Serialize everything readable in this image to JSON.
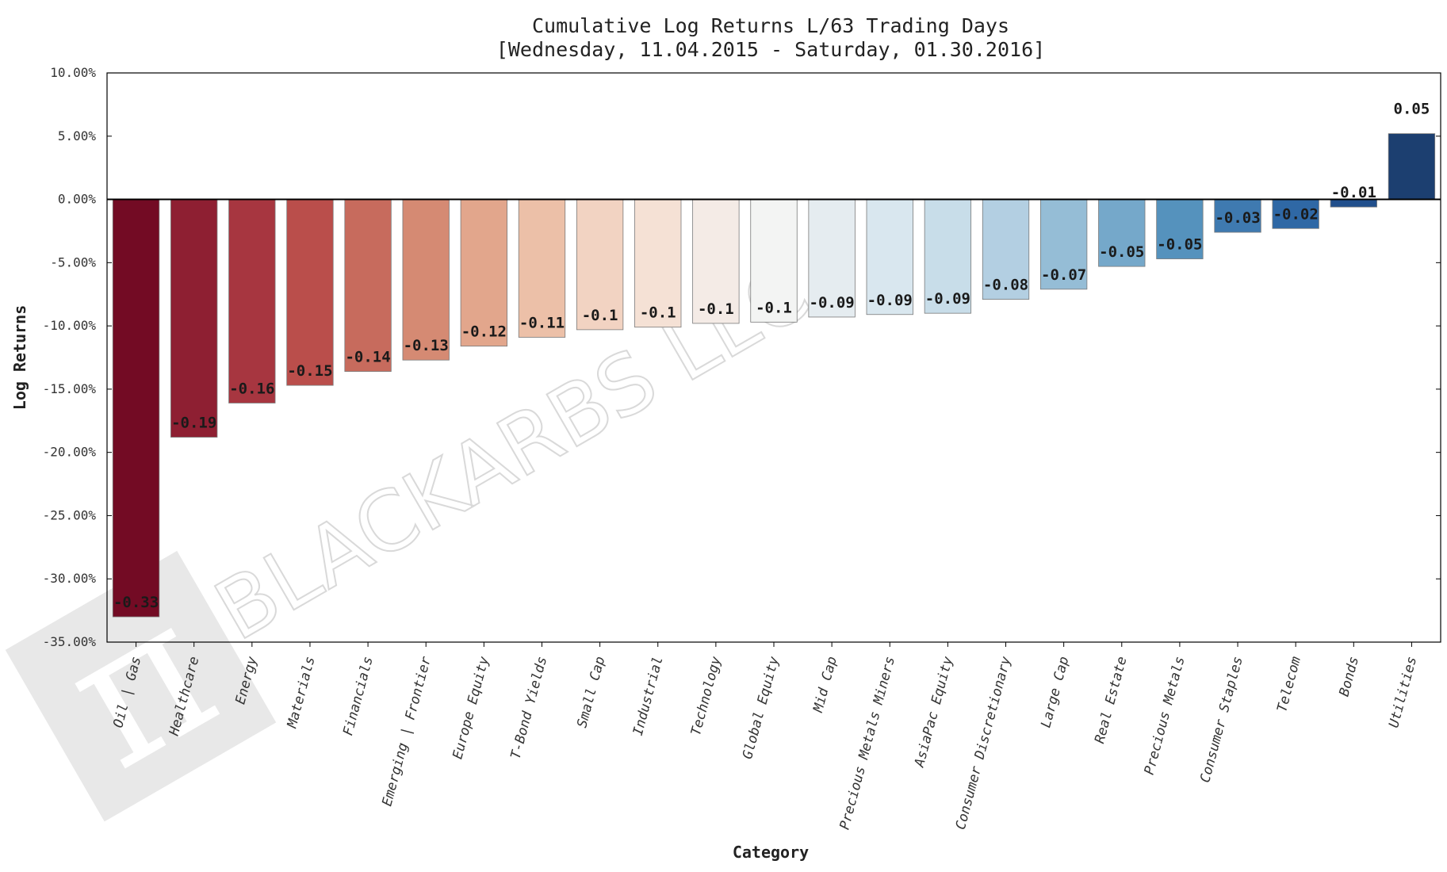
{
  "chart_data": {
    "type": "bar",
    "title": "Cumulative Log Returns L/63 Trading Days",
    "subtitle": "[Wednesday, 11.04.2015 - Saturday, 01.30.2016]",
    "xlabel": "Category",
    "ylabel": "Log Returns",
    "ylim": [
      -0.35,
      0.1
    ],
    "yticks": [
      0.1,
      0.05,
      0.0,
      -0.05,
      -0.1,
      -0.15,
      -0.2,
      -0.25,
      -0.3,
      -0.35
    ],
    "ytick_labels": [
      "10.00%",
      "5.00%",
      "0.00%",
      "-5.00%",
      "-10.00%",
      "-15.00%",
      "-20.00%",
      "-25.00%",
      "-30.00%",
      "-35.00%"
    ],
    "categories": [
      "Oil | Gas",
      "Healthcare",
      "Energy",
      "Materials",
      "Financials",
      "Emerging | Frontier",
      "Europe Equity",
      "T-Bond Yields",
      "Small Cap",
      "Industrial",
      "Technology",
      "Global Equity",
      "Mid Cap",
      "Precious Metals Miners",
      "AsiaPac Equity",
      "Consumer Discretionary",
      "Large Cap",
      "Real Estate",
      "Precious Metals",
      "Consumer Staples",
      "Telecom",
      "Bonds",
      "Utilities"
    ],
    "values": [
      -0.33,
      -0.188,
      -0.161,
      -0.147,
      -0.136,
      -0.127,
      -0.116,
      -0.109,
      -0.103,
      -0.101,
      -0.098,
      -0.097,
      -0.093,
      -0.091,
      -0.09,
      -0.079,
      -0.071,
      -0.053,
      -0.047,
      -0.026,
      -0.023,
      -0.006,
      0.052
    ],
    "data_labels": [
      "-0.33",
      "-0.19",
      "-0.16",
      "-0.15",
      "-0.14",
      "-0.13",
      "-0.12",
      "-0.11",
      "-0.1",
      "-0.1",
      "-0.1",
      "-0.1",
      "-0.09",
      "-0.09",
      "-0.09",
      "-0.08",
      "-0.07",
      "-0.05",
      "-0.05",
      "-0.03",
      "-0.02",
      "-0.01",
      "0.05"
    ],
    "colors": [
      "#730b24",
      "#8e1f32",
      "#a73640",
      "#ba4e4b",
      "#c76b5d",
      "#d58a73",
      "#e2a68c",
      "#ecc0a8",
      "#f2d3c2",
      "#f5e1d5",
      "#f4ebe6",
      "#f3f4f3",
      "#e5ecf0",
      "#d9e7ef",
      "#c8dde9",
      "#b3cfe2",
      "#95bdd6",
      "#75a8ca",
      "#5592bd",
      "#3f7ab0",
      "#2f68a5",
      "#214f8c",
      "#1c3f70"
    ],
    "grid": false,
    "legend": "none"
  },
  "watermark": {
    "text": "BLACKARBS LLC",
    "logo_glyph": "π",
    "color": "#e6e6e6"
  }
}
